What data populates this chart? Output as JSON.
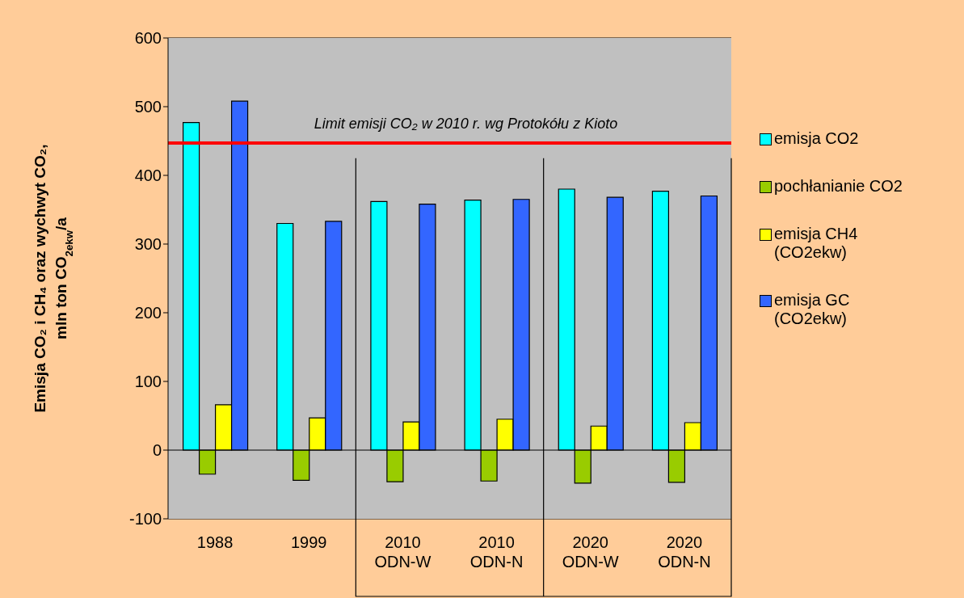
{
  "chart_data": {
    "type": "bar",
    "ylabel": "Emisja CO₂ i CH₄ oraz wychwyt CO₂,\nmln ton CO$_{2ekw}$/a",
    "categories": [
      "1988",
      "1999",
      "2010 ODN-W",
      "2010 ODN-N",
      "2020 ODN-W",
      "2020 ODN-N"
    ],
    "series": [
      {
        "name": "emisja CO2",
        "color": "#00ffff",
        "values": [
          477,
          330,
          362,
          364,
          380,
          377
        ]
      },
      {
        "name": "pochłanianie CO2",
        "color": "#99cc00",
        "values": [
          -35,
          -44,
          -46,
          -45,
          -48,
          -47
        ]
      },
      {
        "name": "emisja CH4 (CO2ekw)",
        "color": "#ffff00",
        "values": [
          66,
          47,
          41,
          45,
          35,
          40
        ]
      },
      {
        "name": "emisja GC (CO2ekw)",
        "color": "#3366ff",
        "values": [
          508,
          333,
          358,
          365,
          368,
          370
        ]
      }
    ],
    "ylim": [
      -100,
      600
    ],
    "yticks": [
      -100,
      0,
      100,
      200,
      300,
      400,
      500,
      600
    ],
    "grid": "y",
    "legend": "right",
    "ref_lines": [
      {
        "axis": "y",
        "value": 447,
        "label": "Limit emisji CO₂ w 2010 r. wg Protokółu z Kioto",
        "color": "#ff0000"
      }
    ]
  }
}
